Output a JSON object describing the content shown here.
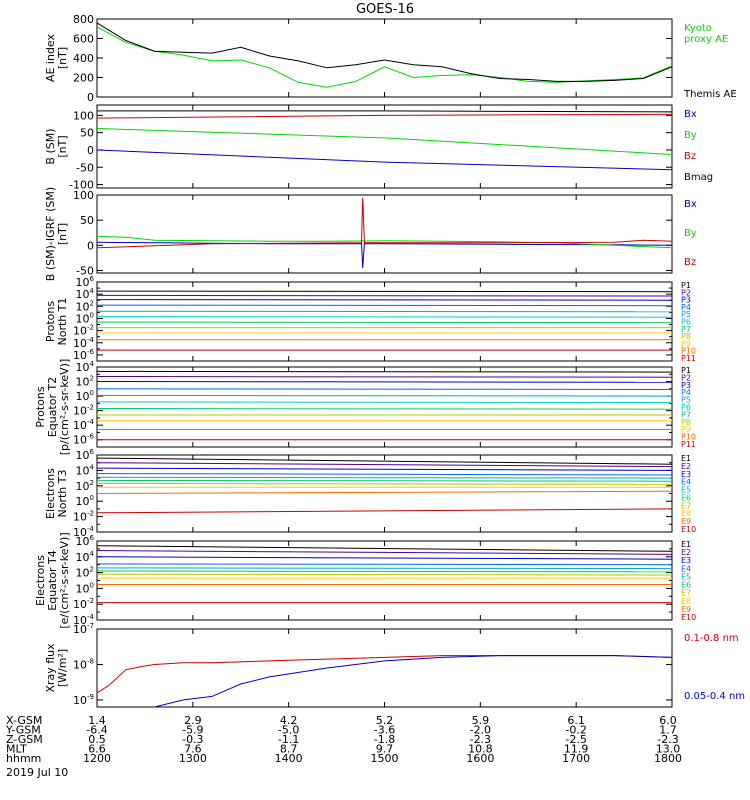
{
  "title": "GOES-16",
  "date": "2019 Jul 10",
  "chart_data": [
    {
      "id": "ae",
      "type": "line",
      "ylabel": [
        "AE index",
        "[nT]"
      ],
      "scale": "linear",
      "ylim": [
        0,
        800
      ],
      "ticks": [
        0,
        200,
        400,
        600,
        800
      ],
      "tick_labels": [
        "0",
        "200",
        "400",
        "600",
        "800"
      ],
      "series": [
        {
          "name": "Kyoto proxy AE",
          "color": "#00d800",
          "legend": [
            "Kyoto",
            "proxy AE"
          ],
          "x": [
            0,
            0.05,
            0.1,
            0.15,
            0.2,
            0.25,
            0.3,
            0.35,
            0.4,
            0.45,
            0.5,
            0.55,
            0.6,
            0.65,
            0.7,
            0.75,
            0.8,
            0.85,
            0.9,
            0.95,
            1
          ],
          "y": [
            720,
            560,
            470,
            430,
            370,
            380,
            300,
            150,
            100,
            160,
            310,
            200,
            220,
            230,
            200,
            160,
            150,
            165,
            180,
            195,
            320
          ]
        },
        {
          "name": "Themis AE",
          "color": "#000000",
          "legend": [
            "Themis AE"
          ],
          "x": [
            0,
            0.05,
            0.1,
            0.15,
            0.2,
            0.25,
            0.3,
            0.35,
            0.4,
            0.45,
            0.5,
            0.55,
            0.6,
            0.65,
            0.7,
            0.75,
            0.8,
            0.85,
            0.9,
            0.95,
            1
          ],
          "y": [
            760,
            580,
            470,
            460,
            450,
            510,
            420,
            370,
            300,
            330,
            380,
            330,
            310,
            240,
            190,
            180,
            160,
            160,
            170,
            190,
            310
          ]
        }
      ]
    },
    {
      "id": "bsm",
      "type": "line",
      "ylabel": [
        "B (SM)",
        "[nT]"
      ],
      "scale": "linear",
      "ylim": [
        -110,
        130
      ],
      "ticks": [
        -100,
        -50,
        0,
        50,
        100
      ],
      "tick_labels": [
        "-100",
        "-50",
        "0",
        "50",
        "100"
      ],
      "series": [
        {
          "name": "Bx",
          "color": "#0000cc",
          "legend": [
            "Bx"
          ],
          "x": [
            0,
            0.5,
            1
          ],
          "y": [
            0,
            -35,
            -57
          ]
        },
        {
          "name": "By",
          "color": "#00d800",
          "legend": [
            "By"
          ],
          "x": [
            0,
            0.5,
            1
          ],
          "y": [
            62,
            35,
            -13
          ]
        },
        {
          "name": "Bz",
          "color": "#cc0000",
          "legend": [
            "Bz"
          ],
          "x": [
            0,
            0.5,
            1
          ],
          "y": [
            92,
            100,
            103
          ]
        },
        {
          "name": "Bmag",
          "color": "#000000",
          "legend": [
            "Bmag"
          ],
          "x": [
            0,
            0.5,
            1
          ],
          "y": [
            113,
            113,
            110
          ]
        }
      ]
    },
    {
      "id": "bigrf",
      "type": "line",
      "ylabel": [
        "B (SM)-IGRF (SM)",
        "[nT]"
      ],
      "scale": "linear",
      "ylim": [
        -55,
        100
      ],
      "ticks": [
        -50,
        0,
        50,
        100
      ],
      "tick_labels": [
        "-50",
        "0",
        "50",
        "100"
      ],
      "series": [
        {
          "name": "Bx",
          "color": "#0000cc",
          "legend": [
            "Bx"
          ],
          "x": [
            0,
            0.1,
            0.2,
            0.3,
            0.46,
            0.462,
            0.465,
            0.5,
            0.7,
            0.9,
            1
          ],
          "y": [
            6,
            5,
            4,
            3,
            3,
            -45,
            3,
            3,
            2,
            1,
            0
          ]
        },
        {
          "name": "By",
          "color": "#00d800",
          "legend": [
            "By"
          ],
          "x": [
            0,
            0.05,
            0.1,
            0.2,
            0.3,
            0.4,
            0.5,
            0.6,
            0.7,
            0.8,
            0.9,
            1
          ],
          "y": [
            18,
            16,
            10,
            9,
            8,
            8,
            9,
            8,
            7,
            5,
            0,
            -5
          ]
        },
        {
          "name": "Bz",
          "color": "#cc0000",
          "legend": [
            "Bz"
          ],
          "x": [
            0,
            0.2,
            0.46,
            0.462,
            0.465,
            0.5,
            0.7,
            0.9,
            0.95,
            1
          ],
          "y": [
            -5,
            3,
            5,
            95,
            5,
            5,
            5,
            6,
            10,
            8
          ]
        }
      ]
    },
    {
      "id": "pn",
      "type": "line",
      "ylabel": [
        "Protons",
        "North T1"
      ],
      "scale": "log",
      "ylim": [
        -7,
        6
      ],
      "ticks": [
        -6,
        -4,
        -2,
        0,
        2,
        4,
        6
      ],
      "tick_labels": [
        [
          "10",
          "-6"
        ],
        [
          "10",
          "-4"
        ],
        [
          "10",
          "-2"
        ],
        [
          "10",
          "0"
        ],
        [
          "10",
          "2"
        ],
        [
          "10",
          "4"
        ],
        [
          "10",
          "6"
        ]
      ],
      "series": [
        {
          "name": "P1",
          "color": "#000000",
          "legend": [
            "P1"
          ],
          "y": [
            4.5,
            4.4
          ]
        },
        {
          "name": "P2",
          "color": "#550088",
          "legend": [
            "P2"
          ],
          "y": [
            3.8,
            3.7
          ]
        },
        {
          "name": "P3",
          "color": "#0000cc",
          "legend": [
            "P3"
          ],
          "y": [
            3.1,
            3.0
          ]
        },
        {
          "name": "P4",
          "color": "#0066ff",
          "legend": [
            "P4"
          ],
          "y": [
            2.2,
            2.1
          ]
        },
        {
          "name": "P5",
          "color": "#00aacc",
          "legend": [
            "P5"
          ],
          "y": [
            1.2,
            1.1
          ]
        },
        {
          "name": "P6",
          "color": "#00cccc",
          "legend": [
            "P6"
          ],
          "y": [
            0.3,
            0.2
          ]
        },
        {
          "name": "P7",
          "color": "#00cc66",
          "legend": [
            "P7"
          ],
          "y": [
            -0.6,
            -0.7
          ]
        },
        {
          "name": "P8",
          "color": "#aacc00",
          "legend": [
            "P8"
          ],
          "y": [
            -1.5,
            -1.5
          ]
        },
        {
          "name": "P9",
          "color": "#ffcc00",
          "legend": [
            "P9"
          ],
          "y": [
            -2.4,
            -2.4
          ]
        },
        {
          "name": "P10",
          "color": "#ff6600",
          "legend": [
            "P10"
          ],
          "y": [
            -3.5,
            -3.5
          ]
        },
        {
          "name": "P11",
          "color": "#cc0000",
          "legend": [
            "P11"
          ],
          "y": [
            -5.2,
            -5.2
          ]
        }
      ]
    },
    {
      "id": "pe",
      "type": "line",
      "ylabel": [
        "Protons",
        "Equator T2",
        "[p/(cm²-s-sr-keV)]"
      ],
      "scale": "log",
      "ylim": [
        -7,
        4
      ],
      "ticks": [
        -6,
        -4,
        -2,
        0,
        2,
        4
      ],
      "tick_labels": [
        [
          "10",
          "-6"
        ],
        [
          "10",
          "-4"
        ],
        [
          "10",
          "-2"
        ],
        [
          "10",
          "0"
        ],
        [
          "10",
          "2"
        ],
        [
          "10",
          "4"
        ]
      ],
      "series": [
        {
          "name": "P1",
          "color": "#000000",
          "legend": [
            "P1"
          ],
          "y": [
            3.4,
            3.3
          ]
        },
        {
          "name": "P2",
          "color": "#550088",
          "legend": [
            "P2"
          ],
          "y": [
            2.7,
            2.6
          ]
        },
        {
          "name": "P3",
          "color": "#0000cc",
          "legend": [
            "P3"
          ],
          "y": [
            2.0,
            1.9
          ]
        },
        {
          "name": "P4",
          "color": "#0066ff",
          "legend": [
            "P4"
          ],
          "y": [
            1.0,
            0.9
          ]
        },
        {
          "name": "P5",
          "color": "#00aacc",
          "legend": [
            "P5"
          ],
          "y": [
            0.1,
            0.0
          ]
        },
        {
          "name": "P6",
          "color": "#00cccc",
          "legend": [
            "P6"
          ],
          "y": [
            -0.8,
            -0.9
          ]
        },
        {
          "name": "P7",
          "color": "#00cc66",
          "legend": [
            "P7"
          ],
          "y": [
            -1.7,
            -1.8
          ]
        },
        {
          "name": "P8",
          "color": "#aacc00",
          "legend": [
            "P8"
          ],
          "y": [
            -2.6,
            -2.6
          ]
        },
        {
          "name": "P9",
          "color": "#ffcc00",
          "legend": [
            "P9"
          ],
          "y": [
            -3.4,
            -3.4
          ]
        },
        {
          "name": "P10",
          "color": "#ff6600",
          "legend": [
            "P10"
          ],
          "y": [
            -4.6,
            -4.6
          ]
        },
        {
          "name": "P11",
          "color": "#cc0000",
          "legend": [
            "P11"
          ],
          "y": [
            -6.0,
            -6.0
          ]
        }
      ]
    },
    {
      "id": "en",
      "type": "line",
      "ylabel": [
        "Electrons",
        "North T3"
      ],
      "scale": "log",
      "ylim": [
        -4,
        6
      ],
      "ticks": [
        -4,
        -2,
        0,
        2,
        4,
        6
      ],
      "tick_labels": [
        [
          "10",
          "-4"
        ],
        [
          "10",
          "-2"
        ],
        [
          "10",
          "0"
        ],
        [
          "10",
          "2"
        ],
        [
          "10",
          "4"
        ],
        [
          "10",
          "6"
        ]
      ],
      "series": [
        {
          "name": "E1",
          "color": "#000000",
          "legend": [
            "E1"
          ],
          "y": [
            5.6,
            4.8
          ]
        },
        {
          "name": "E2",
          "color": "#550088",
          "legend": [
            "E2"
          ],
          "y": [
            5.0,
            4.5
          ]
        },
        {
          "name": "E3",
          "color": "#0000cc",
          "legend": [
            "E3"
          ],
          "y": [
            4.3,
            4.0
          ]
        },
        {
          "name": "E4",
          "color": "#0066ff",
          "legend": [
            "E4"
          ],
          "y": [
            3.6,
            3.4
          ]
        },
        {
          "name": "E5",
          "color": "#00aacc",
          "legend": [
            "E5"
          ],
          "y": [
            3.1,
            3.0
          ]
        },
        {
          "name": "E6",
          "color": "#00cc66",
          "legend": [
            "E6"
          ],
          "y": [
            2.7,
            2.6
          ]
        },
        {
          "name": "E7",
          "color": "#aacc00",
          "legend": [
            "E7"
          ],
          "y": [
            2.3,
            2.2
          ]
        },
        {
          "name": "E8",
          "color": "#ffcc00",
          "legend": [
            "E8"
          ],
          "y": [
            1.8,
            1.8
          ]
        },
        {
          "name": "E9",
          "color": "#ff6600",
          "legend": [
            "E9"
          ],
          "y": [
            1.0,
            1.3
          ]
        },
        {
          "name": "E10",
          "color": "#cc0000",
          "legend": [
            "E10"
          ],
          "y": [
            -1.5,
            -1.0
          ]
        }
      ]
    },
    {
      "id": "ee",
      "type": "line",
      "ylabel": [
        "Electrons",
        "Equator T4",
        "[e/(cm²-s-sr-keV)]"
      ],
      "scale": "log",
      "ylim": [
        -4,
        6
      ],
      "ticks": [
        -4,
        -2,
        0,
        2,
        4,
        6
      ],
      "tick_labels": [
        [
          "10",
          "-4"
        ],
        [
          "10",
          "-2"
        ],
        [
          "10",
          "0"
        ],
        [
          "10",
          "2"
        ],
        [
          "10",
          "4"
        ],
        [
          "10",
          "6"
        ]
      ],
      "series": [
        {
          "name": "E1",
          "color": "#000000",
          "legend": [
            "E1"
          ],
          "y": [
            5.4,
            4.7
          ]
        },
        {
          "name": "E2",
          "color": "#550088",
          "legend": [
            "E2"
          ],
          "y": [
            4.8,
            4.3
          ]
        },
        {
          "name": "E3",
          "color": "#0000cc",
          "legend": [
            "E3"
          ],
          "y": [
            4.0,
            3.7
          ]
        },
        {
          "name": "E4",
          "color": "#0066ff",
          "legend": [
            "E4"
          ],
          "y": [
            3.1,
            3.0
          ]
        },
        {
          "name": "E5",
          "color": "#00aacc",
          "legend": [
            "E5"
          ],
          "y": [
            2.6,
            2.5
          ]
        },
        {
          "name": "E6",
          "color": "#00cc66",
          "legend": [
            "E6"
          ],
          "y": [
            2.2,
            2.1
          ]
        },
        {
          "name": "E7",
          "color": "#aacc00",
          "legend": [
            "E7"
          ],
          "y": [
            1.8,
            1.7
          ]
        },
        {
          "name": "E8",
          "color": "#ffcc00",
          "legend": [
            "E8"
          ],
          "y": [
            1.3,
            1.3
          ]
        },
        {
          "name": "E9",
          "color": "#ff6600",
          "legend": [
            "E9"
          ],
          "y": [
            0.5,
            0.5
          ]
        },
        {
          "name": "E10",
          "color": "#cc0000",
          "legend": [
            "E10"
          ],
          "y": [
            -1.8,
            -1.8
          ]
        }
      ]
    },
    {
      "id": "xray",
      "type": "line",
      "ylabel": [
        "Xray flux",
        "[W/m²]"
      ],
      "scale": "log",
      "ylim": [
        -9.2,
        -7
      ],
      "ticks": [
        -9,
        -8,
        -7
      ],
      "tick_labels": [
        [
          "10",
          "-9"
        ],
        [
          "10",
          "-8"
        ],
        [
          "10",
          "-7"
        ]
      ],
      "series": [
        {
          "name": "0.1-0.8 nm",
          "color": "#cc0000",
          "legend": [
            "0.1-0.8 nm"
          ],
          "x": [
            0,
            0.02,
            0.05,
            0.08,
            0.1,
            0.15,
            0.2,
            0.3,
            0.4,
            0.5,
            0.6,
            0.7,
            0.8,
            0.9,
            1
          ],
          "y": [
            -8.8,
            -8.6,
            -8.15,
            -8.05,
            -8.0,
            -7.95,
            -7.95,
            -7.9,
            -7.85,
            -7.8,
            -7.75,
            -7.75,
            -7.75,
            -7.75,
            -7.8
          ]
        },
        {
          "name": "0.05-0.4 nm",
          "color": "#0000cc",
          "legend": [
            "0.05-0.4 nm"
          ],
          "x": [
            0.1,
            0.15,
            0.2,
            0.25,
            0.3,
            0.4,
            0.5,
            0.6,
            0.7,
            0.8,
            0.9,
            1
          ],
          "y": [
            -9.2,
            -9.0,
            -8.9,
            -8.55,
            -8.35,
            -8.1,
            -7.9,
            -7.8,
            -7.75,
            -7.75,
            -7.75,
            -7.8
          ]
        }
      ]
    }
  ],
  "x_axis": {
    "ticks": [
      "1200",
      "1300",
      "1400",
      "1500",
      "1600",
      "1700",
      "1800"
    ],
    "rows": [
      {
        "label": "X-GSM",
        "values": [
          "1.4",
          "2.9",
          "4.2",
          "5.2",
          "5.9",
          "6.1",
          "6.0"
        ]
      },
      {
        "label": "Y-GSM",
        "values": [
          "-6.4",
          "-5.9",
          "-5.0",
          "-3.6",
          "-2.0",
          "-0.2",
          "1.7"
        ]
      },
      {
        "label": "Z-GSM",
        "values": [
          "0.5",
          "-0.3",
          "-1.1",
          "-1.8",
          "-2.3",
          "-2.5",
          "-2.3"
        ]
      },
      {
        "label": "MLT",
        "values": [
          "6.6",
          "7.6",
          "8.7",
          "9.7",
          "10.8",
          "11.9",
          "13.0"
        ]
      },
      {
        "label": "hhmm",
        "values": [
          "1200",
          "1300",
          "1400",
          "1500",
          "1600",
          "1700",
          "1800"
        ]
      }
    ]
  }
}
